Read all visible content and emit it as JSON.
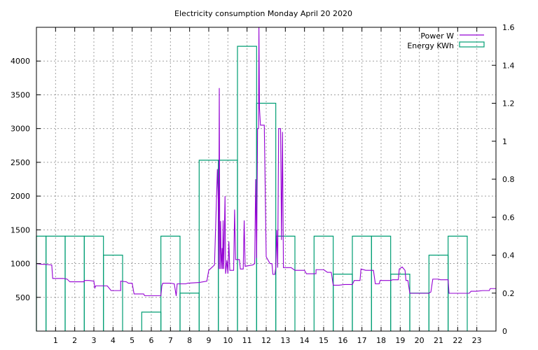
{
  "chart_data": {
    "type": "line",
    "title": "Electricity consumption Monday April 20 2020",
    "grid": true,
    "legend_position": "top-right",
    "colors": {
      "power": "#9400d3",
      "energy": "#009e73"
    },
    "x_axis": {
      "range": [
        0,
        24
      ],
      "tick_values": [
        1,
        2,
        3,
        4,
        5,
        6,
        7,
        8,
        9,
        10,
        11,
        12,
        13,
        14,
        15,
        16,
        17,
        18,
        19,
        20,
        21,
        22,
        23
      ],
      "tick_labels": [
        "1",
        "2",
        "3",
        "4",
        "5",
        "6",
        "7",
        "8",
        "9",
        "10",
        "11",
        "12",
        "13",
        "14",
        "15",
        "16",
        "17",
        "18",
        "19",
        "20",
        "21",
        "22",
        "23"
      ]
    },
    "y_axis_left": {
      "range": [
        0,
        4500
      ],
      "tick_values": [
        500,
        1000,
        1500,
        2000,
        2500,
        3000,
        3500,
        4000
      ],
      "tick_labels": [
        "500",
        "1000",
        "1500",
        "2000",
        "2500",
        "3000",
        "3500",
        "4000"
      ]
    },
    "y_axis_right": {
      "range": [
        0,
        1.6
      ],
      "tick_values": [
        0,
        0.2,
        0.4,
        0.6,
        0.8,
        1.0,
        1.2,
        1.4,
        1.6
      ],
      "tick_labels": [
        "0",
        "0.2",
        "0.4",
        "0.6",
        "0.8",
        "1",
        "1.2",
        "1.4",
        "1.6"
      ]
    },
    "series": [
      {
        "name": "Power W",
        "style": "line",
        "axis": "left",
        "points": [
          [
            0.0,
            1000
          ],
          [
            0.3,
            990
          ],
          [
            0.6,
            985
          ],
          [
            0.8,
            980
          ],
          [
            0.85,
            780
          ],
          [
            1.2,
            780
          ],
          [
            1.4,
            780
          ],
          [
            1.6,
            770
          ],
          [
            1.75,
            730
          ],
          [
            2.3,
            730
          ],
          [
            2.5,
            730
          ],
          [
            2.5,
            750
          ],
          [
            2.75,
            750
          ],
          [
            3.0,
            740
          ],
          [
            3.05,
            640
          ],
          [
            3.1,
            670
          ],
          [
            3.4,
            670
          ],
          [
            3.7,
            670
          ],
          [
            3.9,
            600
          ],
          [
            4.4,
            600
          ],
          [
            4.4,
            740
          ],
          [
            4.7,
            730
          ],
          [
            4.8,
            710
          ],
          [
            5.0,
            710
          ],
          [
            5.1,
            550
          ],
          [
            5.6,
            550
          ],
          [
            5.65,
            525
          ],
          [
            6.5,
            525
          ],
          [
            6.5,
            525
          ],
          [
            6.55,
            670
          ],
          [
            6.6,
            710
          ],
          [
            7.0,
            710
          ],
          [
            7.2,
            700
          ],
          [
            7.3,
            520
          ],
          [
            7.35,
            700
          ],
          [
            7.8,
            700
          ],
          [
            7.9,
            710
          ],
          [
            8.5,
            720
          ],
          [
            8.9,
            740
          ],
          [
            9.0,
            900
          ],
          [
            9.3,
            980
          ],
          [
            9.45,
            2400
          ],
          [
            9.5,
            1900
          ],
          [
            9.52,
            920
          ],
          [
            9.55,
            3600
          ],
          [
            9.58,
            920
          ],
          [
            9.62,
            1630
          ],
          [
            9.65,
            920
          ],
          [
            9.7,
            1230
          ],
          [
            9.72,
            920
          ],
          [
            9.75,
            1640
          ],
          [
            9.78,
            920
          ],
          [
            9.85,
            2000
          ],
          [
            9.88,
            850
          ],
          [
            9.95,
            1050
          ],
          [
            10.0,
            850
          ],
          [
            10.05,
            1330
          ],
          [
            10.1,
            900
          ],
          [
            10.3,
            900
          ],
          [
            10.35,
            1800
          ],
          [
            10.4,
            1060
          ],
          [
            10.6,
            1060
          ],
          [
            10.65,
            920
          ],
          [
            10.8,
            920
          ],
          [
            10.85,
            1640
          ],
          [
            10.9,
            960
          ],
          [
            11.3,
            980
          ],
          [
            11.4,
            1000
          ],
          [
            11.45,
            2250
          ],
          [
            11.5,
            1080
          ],
          [
            11.55,
            3000
          ],
          [
            11.6,
            3000
          ],
          [
            11.62,
            4500
          ],
          [
            11.65,
            3300
          ],
          [
            11.7,
            3050
          ],
          [
            11.9,
            3050
          ],
          [
            12.0,
            1100
          ],
          [
            12.2,
            1000
          ],
          [
            12.3,
            1000
          ],
          [
            12.35,
            840
          ],
          [
            12.45,
            840
          ],
          [
            12.5,
            940
          ],
          [
            12.55,
            1500
          ],
          [
            12.6,
            940
          ],
          [
            12.65,
            3000
          ],
          [
            12.75,
            3000
          ],
          [
            12.8,
            1350
          ],
          [
            12.85,
            2950
          ],
          [
            12.9,
            940
          ],
          [
            13.3,
            940
          ],
          [
            13.5,
            900
          ],
          [
            14.0,
            900
          ],
          [
            14.1,
            850
          ],
          [
            14.6,
            850
          ],
          [
            14.6,
            910
          ],
          [
            15.0,
            910
          ],
          [
            15.2,
            870
          ],
          [
            15.4,
            870
          ],
          [
            15.5,
            680
          ],
          [
            15.8,
            680
          ],
          [
            16.1,
            690
          ],
          [
            16.5,
            690
          ],
          [
            16.6,
            750
          ],
          [
            16.9,
            750
          ],
          [
            16.95,
            920
          ],
          [
            17.2,
            900
          ],
          [
            17.6,
            900
          ],
          [
            17.7,
            700
          ],
          [
            17.9,
            700
          ],
          [
            17.95,
            750
          ],
          [
            18.5,
            750
          ],
          [
            18.6,
            760
          ],
          [
            18.9,
            760
          ],
          [
            18.95,
            920
          ],
          [
            19.1,
            950
          ],
          [
            19.25,
            900
          ],
          [
            19.3,
            750
          ],
          [
            19.4,
            750
          ],
          [
            19.5,
            560
          ],
          [
            20.5,
            560
          ],
          [
            20.6,
            580
          ],
          [
            20.7,
            770
          ],
          [
            21.0,
            770
          ],
          [
            21.1,
            760
          ],
          [
            21.5,
            760
          ],
          [
            21.55,
            560
          ],
          [
            22.6,
            560
          ],
          [
            22.7,
            590
          ],
          [
            23.0,
            590
          ],
          [
            23.3,
            600
          ],
          [
            23.65,
            600
          ],
          [
            23.7,
            630
          ],
          [
            24.0,
            630
          ]
        ]
      },
      {
        "name": "Energy KWh",
        "style": "steps",
        "axis": "right",
        "hours": [
          0,
          1,
          2,
          3,
          4,
          5,
          6,
          7,
          8,
          9,
          10,
          11,
          12,
          13,
          14,
          15,
          16,
          17,
          18,
          19,
          20,
          21,
          22,
          23
        ],
        "values": [
          0.5,
          0.5,
          0.5,
          0.5,
          0.4,
          0.0,
          0.1,
          0.5,
          0.2,
          0.9,
          0.9,
          1.5,
          1.2,
          0.5,
          0.0,
          0.5,
          0.3,
          0.5,
          0.5,
          0.3,
          0.2,
          0.4,
          0.5,
          0.0
        ]
      }
    ]
  }
}
